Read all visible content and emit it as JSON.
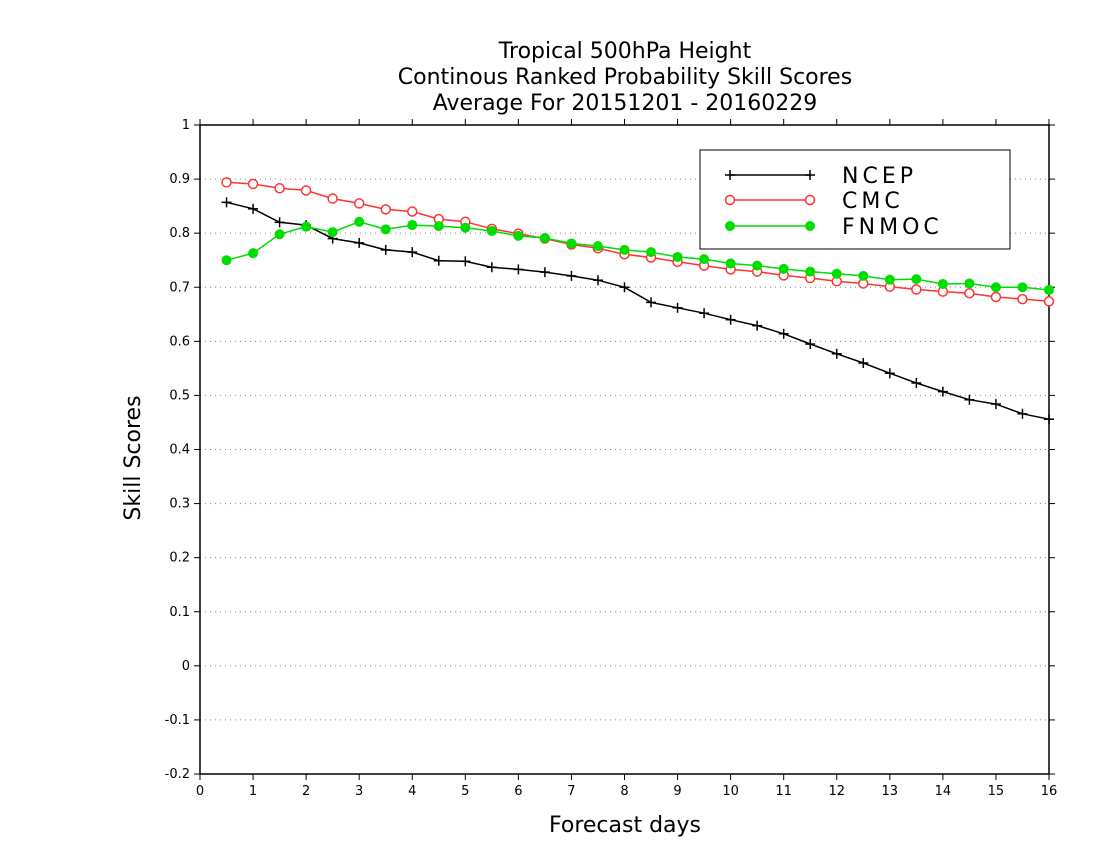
{
  "chart_data": {
    "type": "line",
    "title": [
      "Tropical 500hPa Height",
      "Continous Ranked Probability Skill Scores",
      "Average For 20151201 - 20160229"
    ],
    "xlabel": "Forecast days",
    "ylabel": "Skill Scores",
    "xlim": [
      0,
      16
    ],
    "ylim": [
      -0.2,
      1
    ],
    "xticks": [
      0,
      1,
      2,
      3,
      4,
      5,
      6,
      7,
      8,
      9,
      10,
      11,
      12,
      13,
      14,
      15,
      16
    ],
    "yticks": [
      -0.2,
      -0.1,
      0,
      0.1,
      0.2,
      0.3,
      0.4,
      0.5,
      0.6,
      0.7,
      0.8,
      0.9,
      1
    ],
    "ytick_labels": [
      "-0.2",
      "-0.1",
      "0",
      "0.1",
      "0.2",
      "0.3",
      "0.4",
      "0.5",
      "0.6",
      "0.7",
      "0.8",
      "0.9",
      "1"
    ],
    "grid": "horizontal dotted",
    "legend_position": "top-right",
    "x": [
      0.5,
      1.0,
      1.5,
      2.0,
      2.5,
      3.0,
      3.5,
      4.0,
      4.5,
      5.0,
      5.5,
      6.0,
      6.5,
      7.0,
      7.5,
      8.0,
      8.5,
      9.0,
      9.5,
      10.0,
      10.5,
      11.0,
      11.5,
      12.0,
      12.5,
      13.0,
      13.5,
      14.0,
      14.5,
      15.0,
      15.5,
      16.0
    ],
    "series": [
      {
        "name": "NCEP",
        "color": "#000000",
        "marker": "plus",
        "values": [
          0.857,
          0.845,
          0.82,
          0.815,
          0.79,
          0.782,
          0.769,
          0.765,
          0.749,
          0.748,
          0.737,
          0.733,
          0.728,
          0.721,
          0.713,
          0.7,
          0.672,
          0.662,
          0.652,
          0.64,
          0.629,
          0.614,
          0.595,
          0.577,
          0.56,
          0.541,
          0.523,
          0.507,
          0.492,
          0.484,
          0.466,
          0.456
        ]
      },
      {
        "name": "CMC",
        "color": "#ff3333",
        "marker": "open-circle",
        "values": [
          0.894,
          0.891,
          0.883,
          0.879,
          0.864,
          0.855,
          0.844,
          0.84,
          0.826,
          0.821,
          0.808,
          0.799,
          0.79,
          0.779,
          0.772,
          0.761,
          0.755,
          0.747,
          0.74,
          0.733,
          0.729,
          0.722,
          0.717,
          0.711,
          0.707,
          0.701,
          0.696,
          0.692,
          0.689,
          0.682,
          0.678,
          0.674
        ]
      },
      {
        "name": "FNMOC",
        "color": "#00dd00",
        "marker": "filled-circle",
        "values": [
          0.75,
          0.763,
          0.798,
          0.812,
          0.802,
          0.821,
          0.807,
          0.815,
          0.813,
          0.81,
          0.804,
          0.795,
          0.791,
          0.781,
          0.776,
          0.769,
          0.765,
          0.756,
          0.752,
          0.744,
          0.74,
          0.734,
          0.729,
          0.725,
          0.721,
          0.714,
          0.715,
          0.706,
          0.707,
          0.7,
          0.7,
          0.695
        ]
      }
    ]
  }
}
